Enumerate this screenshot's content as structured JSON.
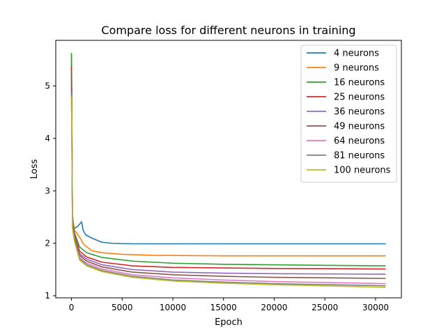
{
  "chart_data": {
    "type": "line",
    "title": "Compare loss for different neurons in training",
    "xlabel": "Epoch",
    "ylabel": "Loss",
    "xlim": [
      -1550,
      32550
    ],
    "ylim": [
      0.96,
      5.87
    ],
    "xticks": [
      0,
      5000,
      10000,
      15000,
      20000,
      25000,
      30000
    ],
    "yticks": [
      1,
      2,
      3,
      4,
      5
    ],
    "grid": false,
    "legend_position": "top-right",
    "series": [
      {
        "name": "4 neurons",
        "color": "#1f77b4",
        "points": [
          [
            0,
            5.6
          ],
          [
            100,
            2.55
          ],
          [
            250,
            2.28
          ],
          [
            600,
            2.32
          ],
          [
            1000,
            2.41
          ],
          [
            1150,
            2.25
          ],
          [
            1400,
            2.16
          ],
          [
            2000,
            2.1
          ],
          [
            3000,
            2.02
          ],
          [
            4000,
            2.0
          ],
          [
            6000,
            1.99
          ],
          [
            10000,
            1.99
          ],
          [
            20000,
            1.99
          ],
          [
            31000,
            1.99
          ]
        ]
      },
      {
        "name": "9 neurons",
        "color": "#ff7f0e",
        "points": [
          [
            0,
            5.5
          ],
          [
            100,
            2.5
          ],
          [
            300,
            2.25
          ],
          [
            800,
            2.12
          ],
          [
            1200,
            1.98
          ],
          [
            2000,
            1.86
          ],
          [
            3000,
            1.82
          ],
          [
            5000,
            1.79
          ],
          [
            8000,
            1.77
          ],
          [
            15000,
            1.76
          ],
          [
            31000,
            1.76
          ]
        ]
      },
      {
        "name": "16 neurons",
        "color": "#2ca02c",
        "points": [
          [
            0,
            5.63
          ],
          [
            100,
            2.45
          ],
          [
            300,
            2.2
          ],
          [
            800,
            1.93
          ],
          [
            1500,
            1.82
          ],
          [
            3000,
            1.73
          ],
          [
            6000,
            1.66
          ],
          [
            10000,
            1.62
          ],
          [
            15000,
            1.6
          ],
          [
            20000,
            1.59
          ],
          [
            25000,
            1.58
          ],
          [
            31000,
            1.57
          ]
        ]
      },
      {
        "name": "25 neurons",
        "color": "#d62728",
        "points": [
          [
            0,
            5.38
          ],
          [
            100,
            2.4
          ],
          [
            300,
            2.15
          ],
          [
            800,
            1.85
          ],
          [
            1500,
            1.74
          ],
          [
            3000,
            1.64
          ],
          [
            6000,
            1.57
          ],
          [
            10000,
            1.54
          ],
          [
            15000,
            1.53
          ],
          [
            20000,
            1.52
          ],
          [
            31000,
            1.51
          ]
        ]
      },
      {
        "name": "36 neurons",
        "color": "#9467bd",
        "points": [
          [
            0,
            5.05
          ],
          [
            100,
            2.38
          ],
          [
            300,
            2.12
          ],
          [
            800,
            1.8
          ],
          [
            1500,
            1.7
          ],
          [
            3000,
            1.59
          ],
          [
            6000,
            1.5
          ],
          [
            10000,
            1.45
          ],
          [
            15000,
            1.43
          ],
          [
            20000,
            1.42
          ],
          [
            31000,
            1.41
          ]
        ]
      },
      {
        "name": "49 neurons",
        "color": "#8c564b",
        "points": [
          [
            0,
            5.3
          ],
          [
            100,
            2.35
          ],
          [
            300,
            2.1
          ],
          [
            800,
            1.77
          ],
          [
            1500,
            1.66
          ],
          [
            3000,
            1.55
          ],
          [
            6000,
            1.45
          ],
          [
            10000,
            1.4
          ],
          [
            15000,
            1.37
          ],
          [
            20000,
            1.35
          ],
          [
            31000,
            1.33
          ]
        ]
      },
      {
        "name": "64 neurons",
        "color": "#e377c2",
        "points": [
          [
            0,
            4.85
          ],
          [
            100,
            2.32
          ],
          [
            300,
            2.07
          ],
          [
            800,
            1.73
          ],
          [
            1500,
            1.62
          ],
          [
            3000,
            1.51
          ],
          [
            6000,
            1.4
          ],
          [
            10000,
            1.34
          ],
          [
            15000,
            1.3
          ],
          [
            20000,
            1.27
          ],
          [
            31000,
            1.23
          ]
        ]
      },
      {
        "name": "81 neurons",
        "color": "#7f7f7f",
        "points": [
          [
            0,
            4.9
          ],
          [
            100,
            2.3
          ],
          [
            300,
            2.05
          ],
          [
            800,
            1.7
          ],
          [
            1500,
            1.59
          ],
          [
            3000,
            1.48
          ],
          [
            6000,
            1.37
          ],
          [
            10000,
            1.3
          ],
          [
            15000,
            1.26
          ],
          [
            20000,
            1.23
          ],
          [
            31000,
            1.19
          ]
        ]
      },
      {
        "name": "100 neurons",
        "color": "#bcbd22",
        "points": [
          [
            0,
            4.8
          ],
          [
            100,
            2.28
          ],
          [
            300,
            2.03
          ],
          [
            800,
            1.68
          ],
          [
            1500,
            1.57
          ],
          [
            3000,
            1.46
          ],
          [
            6000,
            1.35
          ],
          [
            10000,
            1.28
          ],
          [
            15000,
            1.24
          ],
          [
            20000,
            1.21
          ],
          [
            31000,
            1.16
          ]
        ]
      }
    ]
  }
}
